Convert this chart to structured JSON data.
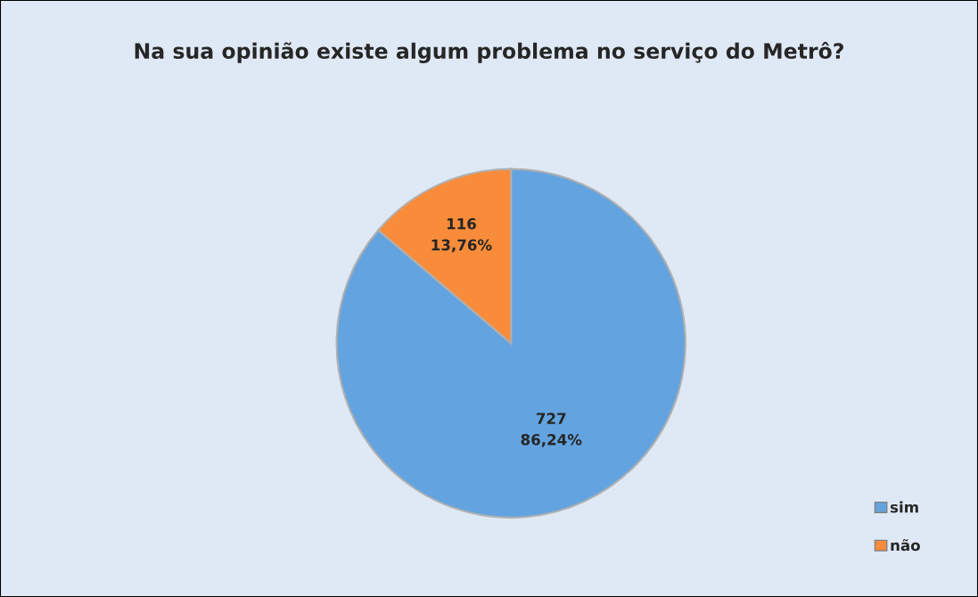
{
  "chart_data": {
    "type": "pie",
    "title": "Na sua opinião existe algum problema no serviço do Metrô?",
    "categories": [
      "sim",
      "não"
    ],
    "values": [
      727,
      116
    ],
    "colors": [
      "#63a4e0",
      "#f98c3a"
    ],
    "value_labels": [
      "727\n86,24%",
      "116\n13,76%"
    ],
    "legend": "bottom right"
  }
}
